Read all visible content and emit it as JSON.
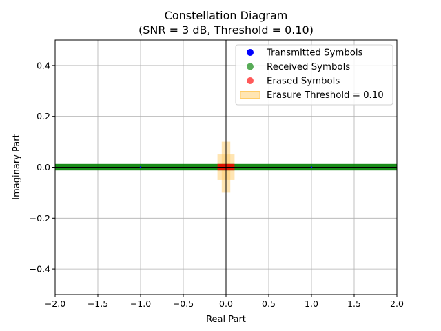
{
  "chart_data": {
    "type": "scatter",
    "title": "Constellation Diagram",
    "subtitle": "(SNR = 3 dB, Threshold = 0.10)",
    "xlabel": "Real Part",
    "ylabel": "Imaginary Part",
    "xlim": [
      -2.0,
      2.0
    ],
    "ylim": [
      -0.5,
      0.5
    ],
    "xticks": [
      -2.0,
      -1.5,
      -1.0,
      -0.5,
      0.0,
      0.5,
      1.0,
      1.5,
      2.0
    ],
    "xtick_labels": [
      "−2.0",
      "−1.5",
      "−1.0",
      "−0.5",
      "0.0",
      "0.5",
      "1.0",
      "1.5",
      "2.0"
    ],
    "yticks": [
      -0.4,
      -0.2,
      0.0,
      0.2,
      0.4
    ],
    "ytick_labels": [
      "−0.4",
      "−0.2",
      "0.0",
      "0.2",
      "0.4"
    ],
    "grid": true,
    "legend_position": "top-right",
    "threshold": 0.1,
    "series": [
      {
        "name": "Transmitted Symbols",
        "kind": "point",
        "color": "#0000ff",
        "points": [
          [
            -1.0,
            0.0
          ],
          [
            1.0,
            0.0
          ]
        ]
      },
      {
        "name": "Received Symbols",
        "kind": "band",
        "color": "#008000",
        "x_range": [
          -2.0,
          2.0
        ],
        "y_range": [
          -0.01,
          0.01
        ]
      },
      {
        "name": "Erased Symbols",
        "kind": "band",
        "color": "#ff0000",
        "x_range": [
          -0.1,
          0.1
        ],
        "y_range": [
          -0.01,
          0.01
        ]
      },
      {
        "name": "Erasure Threshold = 0.10",
        "kind": "region",
        "color": "#ffcc66",
        "rects": [
          {
            "x": [
              -0.1,
              0.1
            ],
            "y": [
              -0.05,
              0.05
            ]
          },
          {
            "x": [
              -0.05,
              0.05
            ],
            "y": [
              -0.1,
              0.1
            ]
          }
        ]
      }
    ]
  }
}
